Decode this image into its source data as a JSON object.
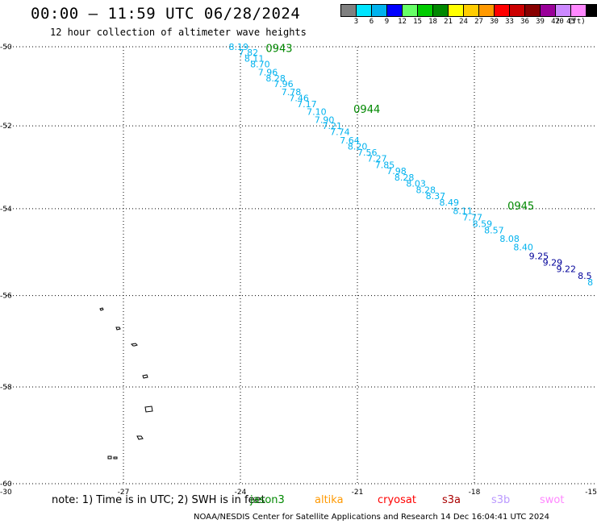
{
  "header": {
    "title": "00:00 – 11:59 UTC 06/28/2024",
    "subtitle": "12 hour collection of altimeter wave heights"
  },
  "legend": {
    "labels": [
      "3",
      "6",
      "9",
      "12",
      "15",
      "18",
      "21",
      "24",
      "27",
      "30",
      "33",
      "36",
      "39",
      "42",
      "45",
      "70"
    ],
    "unit": "(ft)",
    "colors": [
      "#808080",
      "#00e5ff",
      "#00b2ee",
      "#0000ff",
      "#66ff66",
      "#00cc00",
      "#008800",
      "#ffff00",
      "#ffcc00",
      "#ff9900",
      "#ff0000",
      "#cc0000",
      "#880000",
      "#990099",
      "#cc88ff",
      "#ff88ff",
      "#000000"
    ]
  },
  "axes": {
    "y_ticks": [
      "-50",
      "-52",
      "-54",
      "-56",
      "-58",
      "-60"
    ],
    "x_ticks": [
      "-30",
      "-27",
      "-24",
      "-21",
      "-18",
      "-15"
    ]
  },
  "track": {
    "time_labels": [
      {
        "text": "0943",
        "lon": -23.35,
        "lat": -50.05
      },
      {
        "text": "0944",
        "lon": -21.1,
        "lat": -51.6
      },
      {
        "text": "0945",
        "lon": -17.15,
        "lat": -53.95
      }
    ],
    "points": [
      {
        "v": "8.19",
        "lon": -24.3,
        "lat": -50.0,
        "c": "light"
      },
      {
        "v": "7.82",
        "lon": -24.05,
        "lat": -50.15,
        "c": "light"
      },
      {
        "v": "8.11",
        "lon": -23.9,
        "lat": -50.3,
        "c": "light"
      },
      {
        "v": "8.70",
        "lon": -23.75,
        "lat": -50.45,
        "c": "light"
      },
      {
        "v": "7.96",
        "lon": -23.55,
        "lat": -50.65,
        "c": "light"
      },
      {
        "v": "8.28",
        "lon": -23.35,
        "lat": -50.8,
        "c": "light"
      },
      {
        "v": "7.96",
        "lon": -23.15,
        "lat": -50.95,
        "c": "light"
      },
      {
        "v": "7.78",
        "lon": -22.95,
        "lat": -51.15,
        "c": "light"
      },
      {
        "v": "7.46",
        "lon": -22.75,
        "lat": -51.3,
        "c": "light"
      },
      {
        "v": "7.17",
        "lon": -22.55,
        "lat": -51.45,
        "c": "light"
      },
      {
        "v": "7.10",
        "lon": -22.3,
        "lat": -51.65,
        "c": "light"
      },
      {
        "v": "7.90",
        "lon": -22.1,
        "lat": -51.85,
        "c": "light"
      },
      {
        "v": "7.21",
        "lon": -21.9,
        "lat": -52.0,
        "c": "light"
      },
      {
        "v": "7.74",
        "lon": -21.7,
        "lat": -52.15,
        "c": "light"
      },
      {
        "v": "7.64",
        "lon": -21.45,
        "lat": -52.35,
        "c": "light"
      },
      {
        "v": "8.20",
        "lon": -21.25,
        "lat": -52.5,
        "c": "light"
      },
      {
        "v": "7.56",
        "lon": -21.0,
        "lat": -52.65,
        "c": "light"
      },
      {
        "v": "7.27",
        "lon": -20.75,
        "lat": -52.8,
        "c": "light"
      },
      {
        "v": "7.85",
        "lon": -20.55,
        "lat": -52.95,
        "c": "light"
      },
      {
        "v": "7.98",
        "lon": -20.25,
        "lat": -53.1,
        "c": "light"
      },
      {
        "v": "8.28",
        "lon": -20.05,
        "lat": -53.25,
        "c": "light"
      },
      {
        "v": "8.03",
        "lon": -19.75,
        "lat": -53.4,
        "c": "light"
      },
      {
        "v": "8.28",
        "lon": -19.5,
        "lat": -53.55,
        "c": "light"
      },
      {
        "v": "8.37",
        "lon": -19.25,
        "lat": -53.7,
        "c": "light"
      },
      {
        "v": "8.49",
        "lon": -18.9,
        "lat": -53.85,
        "c": "light"
      },
      {
        "v": "8.11",
        "lon": -18.55,
        "lat": -54.05,
        "c": "light"
      },
      {
        "v": "7.77",
        "lon": -18.3,
        "lat": -54.2,
        "c": "light"
      },
      {
        "v": "8.59",
        "lon": -18.05,
        "lat": -54.35,
        "c": "light"
      },
      {
        "v": "8.57",
        "lon": -17.75,
        "lat": -54.5,
        "c": "light"
      },
      {
        "v": "8.08",
        "lon": -17.35,
        "lat": -54.7,
        "c": "light"
      },
      {
        "v": "8.40",
        "lon": -17.0,
        "lat": -54.9,
        "c": "light"
      },
      {
        "v": "9.25",
        "lon": -16.6,
        "lat": -55.1,
        "c": "dark"
      },
      {
        "v": "9.29",
        "lon": -16.25,
        "lat": -55.25,
        "c": "dark"
      },
      {
        "v": "9.22",
        "lon": -15.9,
        "lat": -55.4,
        "c": "dark"
      },
      {
        "v": "8.5",
        "lon": -15.35,
        "lat": -55.55,
        "c": "dark"
      },
      {
        "v": "8",
        "lon": -15.1,
        "lat": -55.7,
        "c": "light"
      }
    ]
  },
  "footer": {
    "note": "note: 1) Time is in UTC; 2) SWH is in feet",
    "satellites": [
      {
        "name": "jason3",
        "color": "#008800"
      },
      {
        "name": "altika",
        "color": "#ff9900"
      },
      {
        "name": "cryosat",
        "color": "#ff0000"
      },
      {
        "name": "s3a",
        "color": "#aa0000"
      },
      {
        "name": "s3b",
        "color": "#bb99ff"
      },
      {
        "name": "swot",
        "color": "#ff88ff"
      }
    ],
    "credit": "NOAA/NESDIS Center for Satellite Applications and Research    14 Dec 16:04:41 UTC 2024"
  },
  "colors": {
    "track_light": "#00b2ee",
    "track_dark": "#000099",
    "time_label": "#008800"
  }
}
